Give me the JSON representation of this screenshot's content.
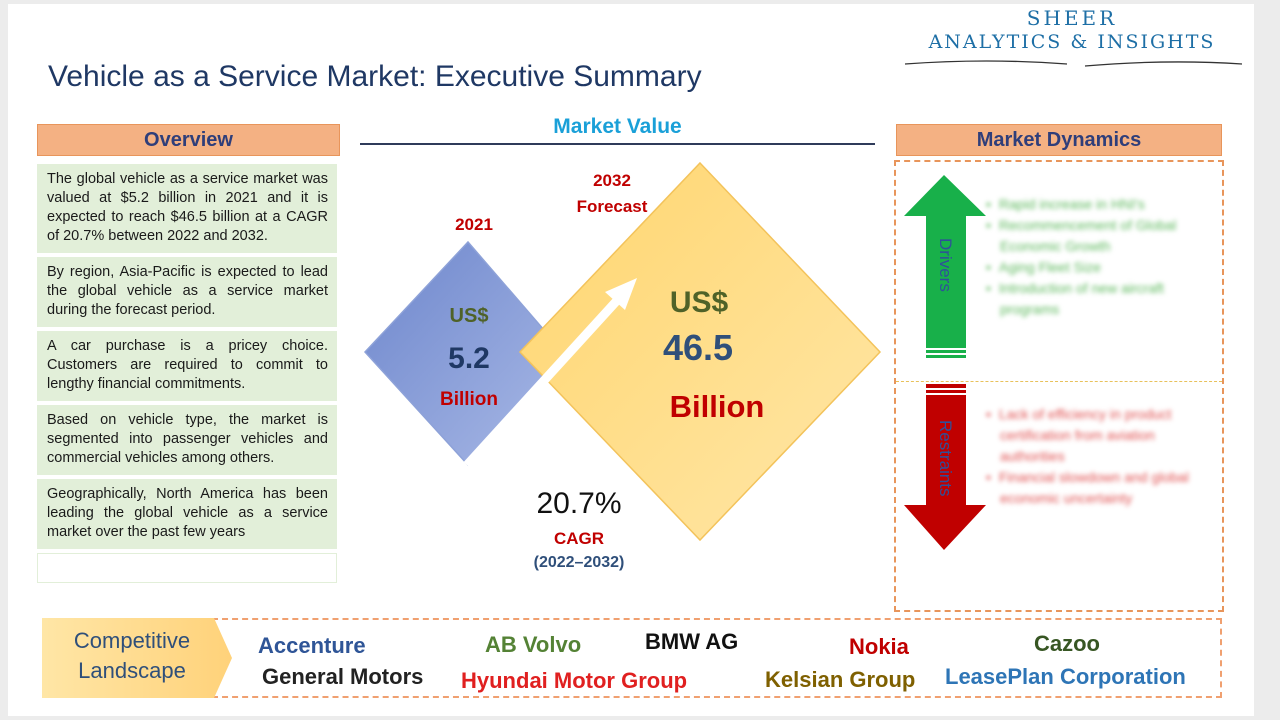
{
  "brand": {
    "line1": "SHEER",
    "line2": "ANALYTICS & INSIGHTS"
  },
  "title": "Vehicle as a Service Market: Executive Summary",
  "overview": {
    "header": "Overview",
    "items": [
      "The global vehicle as a service market was valued at $5.2 billion in 2021 and it is expected to reach $46.5 billion at a CAGR of 20.7% between 2022 and 2032.",
      "By region, Asia-Pacific is expected to lead the global vehicle as a service market during the forecast period.",
      "A car purchase is a pricey choice. Customers are required to commit to lengthy financial commitments.",
      "Based on vehicle type, the market is segmented into passenger vehicles and commercial vehicles among others.",
      "Geographically, North America has been leading the global vehicle as a service market over the past few years"
    ]
  },
  "market_value": {
    "header": "Market Value",
    "y2021": {
      "year": "2021",
      "currency": "US$",
      "value": "5.2",
      "unit": "Billion"
    },
    "y2032": {
      "year": "2032",
      "year_sub": "Forecast",
      "currency": "US$",
      "value": "46.5",
      "unit": "Billion"
    },
    "cagr": {
      "value": "20.7%",
      "label": "CAGR",
      "period": "(2022–2032)"
    }
  },
  "dynamics": {
    "header": "Market Dynamics",
    "drivers_label": "Drivers",
    "restraints_label": "Restraints",
    "drivers": [
      "Rapid increase in HNI's",
      "Recommencement of Global Economic Growth",
      "Aging Fleet Size",
      "Introduction of new aircraft programs"
    ],
    "restraints": [
      "Lack of efficiency in product certification from aviation authorities",
      "Financial slowdown and global economic uncertainty"
    ]
  },
  "competitive": {
    "label_line1": "Competitive",
    "label_line2": "Landscape",
    "companies": [
      {
        "name": "Accenture",
        "color": "#2f5597"
      },
      {
        "name": "AB Volvo",
        "color": "#548235"
      },
      {
        "name": "BMW AG",
        "color": "#111111"
      },
      {
        "name": "Nokia",
        "color": "#c00000"
      },
      {
        "name": "Cazoo",
        "color": "#375623"
      },
      {
        "name": "General Motors",
        "color": "#222222"
      },
      {
        "name": "Hyundai Motor Group",
        "color": "#e02020"
      },
      {
        "name": "Kelsian Group",
        "color": "#7f6000"
      },
      {
        "name": "LeasePlan Corporation",
        "color": "#2e75b6"
      }
    ]
  },
  "colors": {
    "title": "#1f3864",
    "header_bg": "#f4b183",
    "overview_bg": "#e2efd9",
    "accent_blue": "#1aa0d8"
  }
}
